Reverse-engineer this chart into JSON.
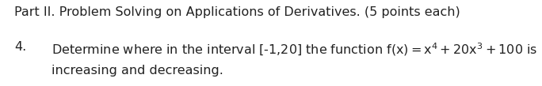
{
  "background_color": "#ffffff",
  "line1": "Part II. Problem Solving on Applications of Derivatives. (5 points each)",
  "line2_number": "4.",
  "line2_formula": "Determine where in the interval [-1,20] the function f(x) = x$^{4}$ + 20x$^{3}$ + 100 is",
  "line3": "increasing and decreasing.",
  "font_size": 11.5,
  "font_color": "#222222",
  "fig_width": 6.84,
  "fig_height": 1.09,
  "dpi": 100
}
